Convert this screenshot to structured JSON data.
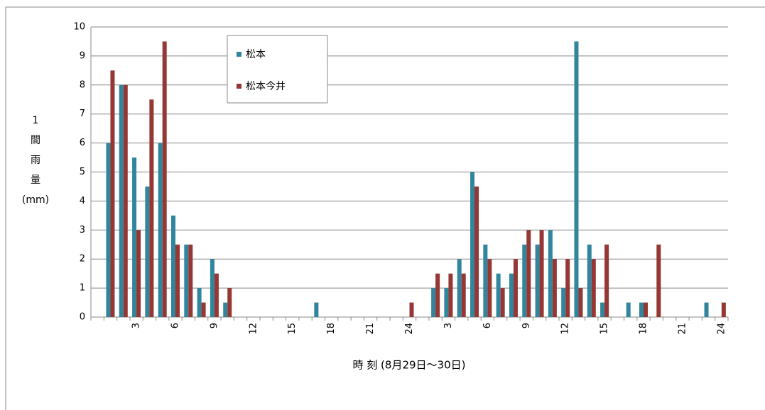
{
  "chart_data": {
    "type": "bar",
    "xlabel": "時 刻 (8月29日～30日)",
    "ylabel": [
      "1",
      "間",
      "雨",
      "量",
      "(mm)"
    ],
    "categories": [
      null,
      null,
      null,
      "3",
      null,
      null,
      "6",
      null,
      null,
      "9",
      null,
      null,
      "12",
      null,
      null,
      "15",
      null,
      null,
      "18",
      null,
      null,
      "21",
      null,
      null,
      "24",
      null,
      null,
      "3",
      null,
      null,
      "6",
      null,
      null,
      "9",
      null,
      null,
      "12",
      null,
      null,
      "15",
      null,
      null,
      "18",
      null,
      null,
      "21",
      null,
      null,
      "24"
    ],
    "series": [
      {
        "name": "松本",
        "color": "#31859c",
        "values": [
          0,
          6,
          8,
          5.5,
          4.5,
          6,
          3.5,
          2.5,
          1,
          2,
          0.5,
          0,
          0,
          0,
          0,
          0,
          0,
          0.5,
          0,
          0,
          0,
          0,
          0,
          0,
          0,
          0,
          1,
          1,
          2,
          5,
          2.5,
          1.5,
          1.5,
          2.5,
          2.5,
          3,
          1,
          9.5,
          2.5,
          0.5,
          0,
          0.5,
          0.5,
          0,
          0,
          0,
          0,
          0.5,
          0
        ]
      },
      {
        "name": "松本今井",
        "color": "#953735",
        "values": [
          0,
          8.5,
          8,
          3,
          7.5,
          9.5,
          2.5,
          2.5,
          0.5,
          1.5,
          1,
          0,
          0,
          0,
          0,
          0,
          0,
          0,
          0,
          0,
          0,
          0,
          0,
          0,
          0.5,
          0,
          1.5,
          1.5,
          1.5,
          4.5,
          2,
          1,
          2,
          3,
          3,
          2,
          2,
          1,
          2,
          2.5,
          0,
          0,
          0.5,
          2.5,
          0,
          0,
          0,
          0,
          0.5
        ]
      }
    ],
    "ylim": [
      0,
      10
    ],
    "yticks": [
      0,
      1,
      2,
      3,
      4,
      5,
      6,
      7,
      8,
      9,
      10
    ],
    "grid": true
  }
}
